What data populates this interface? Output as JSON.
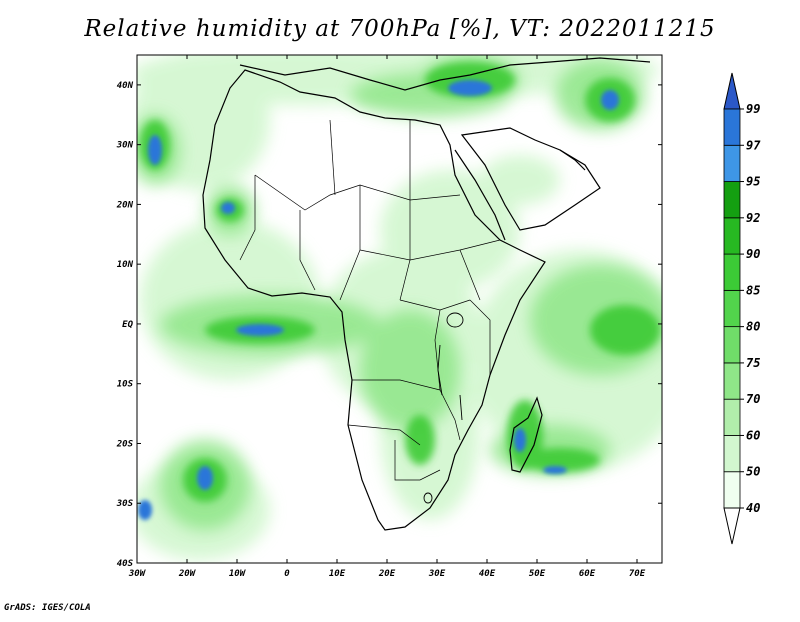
{
  "title": "Relative humidity at 700hPa [%], VT: 2022011215",
  "credit": "GrADS: IGES/COLA",
  "map": {
    "lon_range": [
      -30,
      75
    ],
    "lat_range": [
      -40,
      45
    ],
    "lon_ticks": [
      {
        "value": -30,
        "label": "30W"
      },
      {
        "value": -20,
        "label": "20W"
      },
      {
        "value": -10,
        "label": "10W"
      },
      {
        "value": 0,
        "label": "0"
      },
      {
        "value": 10,
        "label": "10E"
      },
      {
        "value": 20,
        "label": "20E"
      },
      {
        "value": 30,
        "label": "30E"
      },
      {
        "value": 40,
        "label": "40E"
      },
      {
        "value": 50,
        "label": "50E"
      },
      {
        "value": 60,
        "label": "60E"
      },
      {
        "value": 70,
        "label": "70E"
      }
    ],
    "lat_ticks": [
      {
        "value": 40,
        "label": "40N"
      },
      {
        "value": 30,
        "label": "30N"
      },
      {
        "value": 20,
        "label": "20N"
      },
      {
        "value": 10,
        "label": "10N"
      },
      {
        "value": 0,
        "label": "EQ"
      },
      {
        "value": -10,
        "label": "10S"
      },
      {
        "value": -20,
        "label": "20S"
      },
      {
        "value": -30,
        "label": "30S"
      },
      {
        "value": -40,
        "label": "40S"
      }
    ]
  },
  "colorbar": {
    "levels": [
      "40",
      "50",
      "60",
      "70",
      "75",
      "80",
      "85",
      "90",
      "92",
      "95",
      "97",
      "99"
    ],
    "colors": [
      "#f0fff0",
      "#d2f7cf",
      "#b1eeab",
      "#8fe688",
      "#70dd69",
      "#52d44c",
      "#3ccb36",
      "#27b922",
      "#149f11",
      "#3e96e6",
      "#2a76d9",
      "#1c54bf",
      "#2b58c8"
    ],
    "extend_low_color": "#ffffff",
    "extend_high_color": "#2b58c8"
  }
}
